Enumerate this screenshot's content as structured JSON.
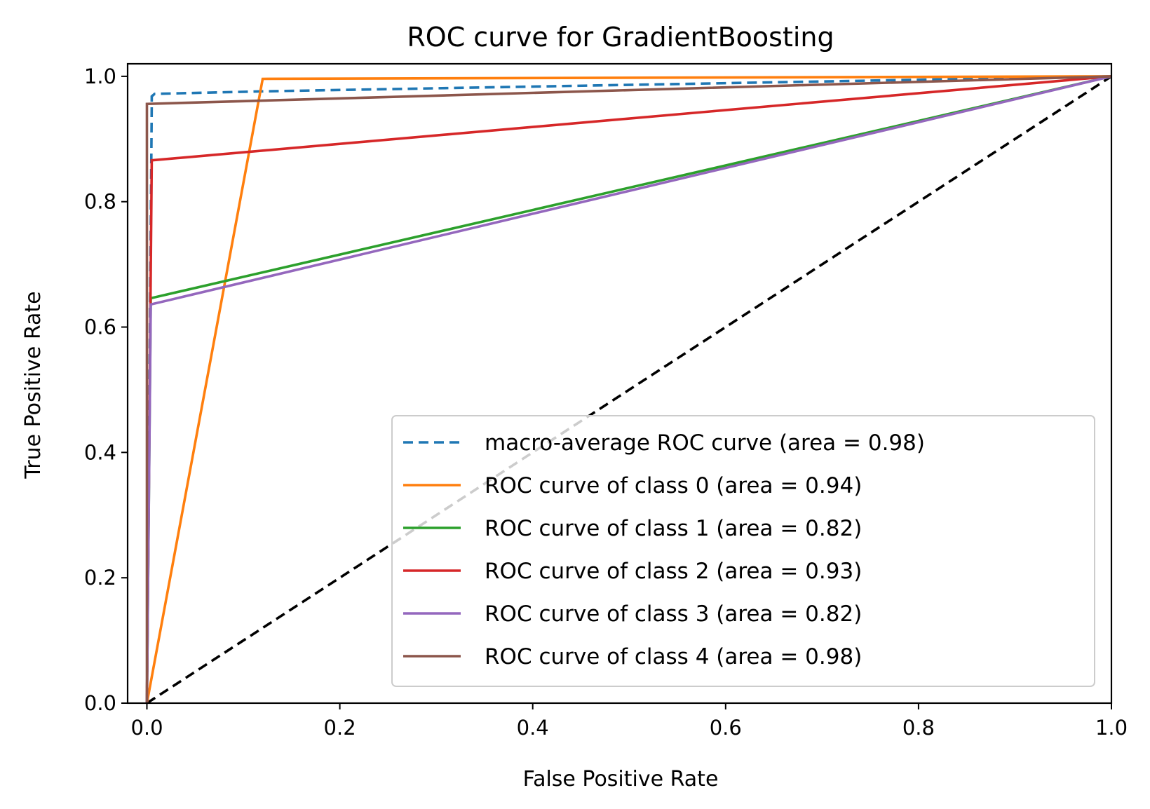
{
  "chart_data": {
    "type": "line",
    "title": "ROC curve for GradientBoosting",
    "xlabel": "False Positive Rate",
    "ylabel": "True Positive Rate",
    "xlim": [
      -0.02,
      1.0
    ],
    "ylim": [
      0.0,
      1.02
    ],
    "xticks": [
      0.0,
      0.2,
      0.4,
      0.6,
      0.8,
      1.0
    ],
    "xtick_labels": [
      "0.0",
      "0.2",
      "0.4",
      "0.6",
      "0.8",
      "1.0"
    ],
    "yticks": [
      0.0,
      0.2,
      0.4,
      0.6,
      0.8,
      1.0
    ],
    "ytick_labels": [
      "0.0",
      "0.2",
      "0.4",
      "0.6",
      "0.8",
      "1.0"
    ],
    "grid": false,
    "legend_position": "lower-right",
    "diagonal": {
      "x": [
        0,
        1
      ],
      "y": [
        0,
        1
      ],
      "color": "#000000",
      "style": "dashed"
    },
    "series": [
      {
        "name": "macro-average ROC curve (area = 0.98)",
        "color": "#1f77b4",
        "style": "dashed",
        "x": [
          0.0,
          0.005,
          0.005,
          0.008,
          0.12,
          1.0
        ],
        "y": [
          0.0,
          0.955,
          0.968,
          0.972,
          0.976,
          1.0
        ]
      },
      {
        "name": "ROC curve of class 0 (area = 0.94)",
        "color": "#ff7f0e",
        "style": "solid",
        "x": [
          0.0,
          0.12,
          1.0
        ],
        "y": [
          0.0,
          0.996,
          1.0
        ]
      },
      {
        "name": "ROC curve of class 1 (area = 0.82)",
        "color": "#2ca02c",
        "style": "solid",
        "x": [
          0.0,
          0.004,
          1.0
        ],
        "y": [
          0.0,
          0.646,
          1.0
        ]
      },
      {
        "name": "ROC curve of class 2 (area = 0.93)",
        "color": "#d62728",
        "style": "solid",
        "x": [
          0.0,
          0.005,
          1.0
        ],
        "y": [
          0.0,
          0.866,
          1.0
        ]
      },
      {
        "name": "ROC curve of class 3 (area = 0.82)",
        "color": "#9467bd",
        "style": "solid",
        "x": [
          0.0,
          0.004,
          1.0
        ],
        "y": [
          0.0,
          0.636,
          1.0
        ]
      },
      {
        "name": "ROC curve of class 4 (area = 0.98)",
        "color": "#8c564b",
        "style": "solid",
        "x": [
          0.0,
          0.0,
          1.0
        ],
        "y": [
          0.0,
          0.956,
          1.0
        ]
      }
    ]
  }
}
